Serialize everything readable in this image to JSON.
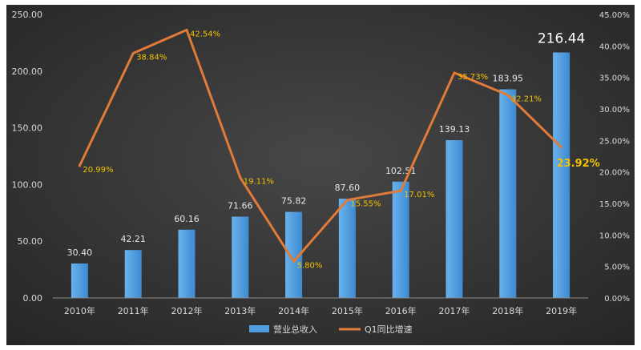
{
  "chart_data": {
    "type": "bar+line",
    "categories": [
      "2010年",
      "2011年",
      "2012年",
      "2013年",
      "2014年",
      "2015年",
      "2016年",
      "2017年",
      "2018年",
      "2019年"
    ],
    "series": [
      {
        "name": "营业总收入",
        "type": "bar",
        "axis": "left",
        "values": [
          30.4,
          42.21,
          60.16,
          71.66,
          75.82,
          87.6,
          102.51,
          139.13,
          183.95,
          216.44
        ],
        "labels": [
          "30.40",
          "42.21",
          "60.16",
          "71.66",
          "75.82",
          "87.60",
          "102.51",
          "139.13",
          "183.95",
          "216.44"
        ],
        "color": "#4f9de0"
      },
      {
        "name": "Q1同比增速",
        "type": "line",
        "axis": "right",
        "values": [
          20.99,
          38.84,
          42.54,
          19.11,
          5.8,
          15.55,
          17.01,
          35.73,
          32.21,
          23.92
        ],
        "labels": [
          "20.99%",
          "38.84%",
          "42.54%",
          "19.11%",
          "5.80%",
          "15.55%",
          "17.01%",
          "35.73%",
          "32.21%",
          "23.92%"
        ],
        "color": "#e07b39"
      }
    ],
    "y_left": {
      "range": [
        0,
        250
      ],
      "ticks": [
        0,
        50,
        100,
        150,
        200,
        250
      ],
      "tick_labels": [
        "0.00",
        "50.00",
        "100.00",
        "150.00",
        "200.00",
        "250.00"
      ]
    },
    "y_right": {
      "range": [
        0,
        45
      ],
      "ticks": [
        0,
        5,
        10,
        15,
        20,
        25,
        30,
        35,
        40,
        45
      ],
      "tick_labels": [
        "0.00%",
        "5.00%",
        "10.00%",
        "15.00%",
        "20.00%",
        "25.00%",
        "30.00%",
        "35.00%",
        "40.00%",
        "45.00%"
      ]
    },
    "grid": false,
    "legend_position": "bottom",
    "background": "#3a3a3a",
    "label_color_bar": "#e6e6e6",
    "label_color_line": "#f2c200"
  }
}
